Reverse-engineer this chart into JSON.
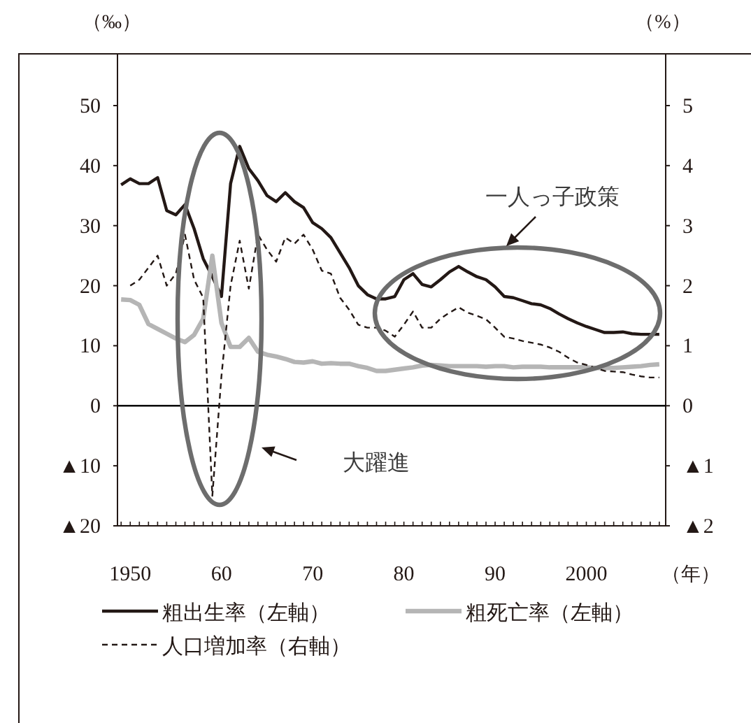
{
  "chart_data": {
    "type": "line",
    "ylabel": "（‰）",
    "y2label": "（%）",
    "xlabel": "（年）",
    "x": [
      1949,
      1950,
      1951,
      1952,
      1953,
      1954,
      1955,
      1956,
      1957,
      1958,
      1959,
      1960,
      1961,
      1962,
      1963,
      1964,
      1965,
      1966,
      1967,
      1968,
      1969,
      1970,
      1971,
      1972,
      1973,
      1974,
      1975,
      1976,
      1977,
      1978,
      1979,
      1980,
      1981,
      1982,
      1983,
      1984,
      1985,
      1986,
      1987,
      1988,
      1989,
      1990,
      1991,
      1992,
      1993,
      1994,
      1995,
      1996,
      1997,
      1998,
      1999,
      2000,
      2001,
      2002,
      2003,
      2004,
      2005,
      2006,
      2007,
      2008
    ],
    "xlim": [
      1948.6,
      2008.7
    ],
    "xticks": [
      {
        "value": 1950,
        "label": "1950"
      },
      {
        "value": 1960,
        "label": "60"
      },
      {
        "value": 1970,
        "label": "70"
      },
      {
        "value": 1980,
        "label": "80"
      },
      {
        "value": 1990,
        "label": "90"
      },
      {
        "value": 2000,
        "label": "2000"
      }
    ],
    "ylim": [
      -20,
      58.5
    ],
    "yticks": [
      {
        "value": -20,
        "label": "▲20"
      },
      {
        "value": -10,
        "label": "▲10"
      },
      0,
      10,
      20,
      30,
      40,
      50
    ],
    "y2lim": [
      -2,
      5.85
    ],
    "y2ticks": [
      {
        "value": -2,
        "label": "▲2"
      },
      {
        "value": -1,
        "label": "▲1"
      },
      0,
      1,
      2,
      3,
      4,
      5
    ],
    "legend": "bottom",
    "series": [
      {
        "name": "粗出生率（左軸）",
        "color": "#231815",
        "line_style": "solid",
        "values": [
          36.8,
          37.8,
          37.0,
          37.0,
          38.0,
          32.5,
          31.8,
          33.5,
          29.5,
          24.5,
          21.5,
          18.2,
          37.0,
          43.2,
          39.5,
          37.5,
          35.0,
          34.0,
          35.5,
          34.0,
          33.0,
          30.5,
          29.5,
          28.0,
          25.5,
          23.0,
          20.0,
          18.5,
          17.8,
          17.8,
          18.2,
          21.0,
          22.0,
          20.2,
          19.8,
          21.0,
          22.3,
          23.2,
          22.3,
          21.5,
          21.0,
          19.8,
          18.2,
          18.0,
          17.5,
          17.0,
          16.8,
          16.2,
          15.3,
          14.5,
          13.8,
          13.2,
          12.7,
          12.2,
          12.2,
          12.3,
          12.0,
          11.9,
          11.9,
          11.9
        ]
      },
      {
        "name": "粗死亡率（左軸）",
        "color": "#b5b5b5",
        "line_style": "solid",
        "values": [
          17.7,
          17.6,
          16.8,
          13.6,
          12.8,
          12.0,
          11.2,
          10.6,
          11.8,
          14.5,
          25.0,
          13.8,
          9.8,
          9.8,
          11.3,
          9.0,
          8.5,
          8.2,
          7.8,
          7.3,
          7.2,
          7.4,
          7.0,
          7.1,
          7.0,
          7.0,
          6.6,
          6.3,
          5.8,
          5.8,
          6.0,
          6.2,
          6.4,
          6.7,
          6.8,
          6.7,
          6.6,
          6.6,
          6.6,
          6.6,
          6.5,
          6.6,
          6.6,
          6.4,
          6.5,
          6.5,
          6.5,
          6.4,
          6.4,
          6.4,
          6.4,
          6.4,
          6.3,
          6.3,
          6.3,
          6.4,
          6.5,
          6.6,
          6.8,
          6.9
        ]
      },
      {
        "name": "人口増加率（右軸）",
        "color": "#231815",
        "line_style": "dashed",
        "axis": "y2",
        "values": [
          null,
          2.0,
          2.1,
          2.3,
          2.5,
          2.0,
          2.2,
          2.85,
          2.1,
          1.8,
          -1.5,
          0.5,
          2.0,
          2.75,
          1.95,
          2.85,
          2.6,
          2.4,
          2.8,
          2.7,
          2.85,
          2.6,
          2.25,
          2.2,
          1.8,
          1.6,
          1.35,
          1.3,
          1.3,
          1.25,
          1.15,
          1.35,
          1.57,
          1.3,
          1.3,
          1.45,
          1.55,
          1.64,
          1.55,
          1.5,
          1.44,
          1.3,
          1.15,
          1.12,
          1.08,
          1.05,
          1.02,
          0.97,
          0.9,
          0.8,
          0.72,
          0.68,
          0.63,
          0.58,
          0.57,
          0.56,
          0.52,
          0.49,
          0.47,
          0.47
        ]
      }
    ],
    "ref_lines": [
      {
        "axis": "y",
        "value": 0,
        "color": "#000000"
      }
    ],
    "annotations": [
      "一人っ子政策",
      "大躍進"
    ]
  }
}
